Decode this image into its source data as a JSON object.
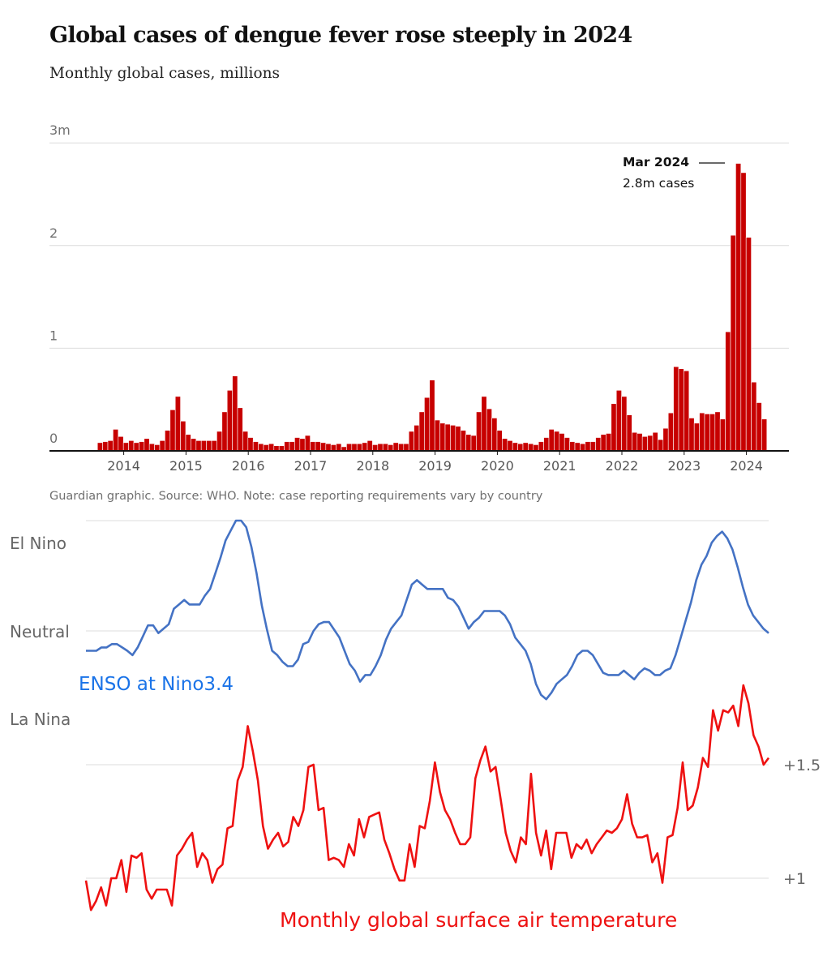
{
  "chart_data": [
    {
      "type": "bar",
      "title": "Global cases of dengue fever rose steeply in 2024",
      "subtitle": "Monthly global cases, millions",
      "xlabel": "",
      "ylabel": "",
      "ylim": [
        0,
        3
      ],
      "y_ticks": [
        {
          "value": 0,
          "label": "0"
        },
        {
          "value": 1,
          "label": "1"
        },
        {
          "value": 2,
          "label": "2"
        },
        {
          "value": 3,
          "label": "3m"
        }
      ],
      "x_labels": [
        "2014",
        "2015",
        "2016",
        "2017",
        "2018",
        "2019",
        "2020",
        "2021",
        "2022",
        "2023",
        "2024"
      ],
      "bar_color": "#c70000",
      "annotation": {
        "title": "Mar 2024",
        "text": "2.8m cases",
        "month_index": 123,
        "value": 2.8
      },
      "source": "Guardian graphic. Source: WHO. Note: case reporting requirements vary by country",
      "values": [
        0.08,
        0.09,
        0.1,
        0.21,
        0.14,
        0.08,
        0.1,
        0.08,
        0.09,
        0.12,
        0.07,
        0.06,
        0.1,
        0.2,
        0.4,
        0.53,
        0.29,
        0.16,
        0.12,
        0.1,
        0.1,
        0.1,
        0.1,
        0.19,
        0.38,
        0.59,
        0.73,
        0.42,
        0.19,
        0.13,
        0.09,
        0.07,
        0.06,
        0.07,
        0.05,
        0.05,
        0.09,
        0.09,
        0.13,
        0.12,
        0.15,
        0.09,
        0.09,
        0.08,
        0.07,
        0.06,
        0.07,
        0.04,
        0.07,
        0.07,
        0.07,
        0.08,
        0.1,
        0.06,
        0.07,
        0.07,
        0.06,
        0.08,
        0.07,
        0.07,
        0.19,
        0.25,
        0.38,
        0.52,
        0.69,
        0.3,
        0.27,
        0.26,
        0.25,
        0.24,
        0.2,
        0.16,
        0.15,
        0.38,
        0.53,
        0.41,
        0.32,
        0.2,
        0.12,
        0.1,
        0.08,
        0.07,
        0.08,
        0.07,
        0.06,
        0.09,
        0.13,
        0.21,
        0.19,
        0.17,
        0.13,
        0.09,
        0.08,
        0.07,
        0.09,
        0.09,
        0.13,
        0.16,
        0.17,
        0.46,
        0.59,
        0.53,
        0.35,
        0.18,
        0.17,
        0.14,
        0.15,
        0.18,
        0.11,
        0.22,
        0.37,
        0.82,
        0.8,
        0.78,
        0.32,
        0.27,
        0.37,
        0.36,
        0.36,
        0.38,
        0.31,
        1.16,
        2.1,
        2.8,
        2.71,
        2.08,
        0.67,
        0.47,
        0.31
      ]
    },
    {
      "type": "line",
      "series_name": "ENSO at Nino3.4",
      "color": "#4472c4",
      "y_labels": [
        "El Nino",
        "Neutral",
        "La Nina"
      ],
      "ylim": [
        -1,
        1
      ],
      "values": [
        -0.18,
        -0.18,
        -0.18,
        -0.15,
        -0.15,
        -0.12,
        -0.12,
        -0.15,
        -0.18,
        -0.22,
        -0.15,
        -0.05,
        0.05,
        0.05,
        -0.02,
        0.02,
        0.06,
        0.2,
        0.24,
        0.28,
        0.24,
        0.24,
        0.24,
        0.32,
        0.38,
        0.52,
        0.66,
        0.82,
        0.91,
        1.0,
        1.0,
        0.94,
        0.76,
        0.52,
        0.23,
        0.01,
        -0.18,
        -0.22,
        -0.28,
        -0.32,
        -0.32,
        -0.26,
        -0.12,
        -0.1,
        0.0,
        0.06,
        0.08,
        0.08,
        0.01,
        -0.06,
        -0.18,
        -0.3,
        -0.36,
        -0.46,
        -0.4,
        -0.4,
        -0.32,
        -0.22,
        -0.08,
        0.02,
        0.08,
        0.14,
        0.28,
        0.42,
        0.46,
        0.42,
        0.38,
        0.38,
        0.38,
        0.38,
        0.3,
        0.28,
        0.22,
        0.12,
        0.02,
        0.08,
        0.12,
        0.18,
        0.18,
        0.18,
        0.18,
        0.14,
        0.06,
        -0.06,
        -0.12,
        -0.18,
        -0.3,
        -0.48,
        -0.58,
        -0.62,
        -0.56,
        -0.48,
        -0.44,
        -0.4,
        -0.32,
        -0.22,
        -0.18,
        -0.18,
        -0.22,
        -0.3,
        -0.38,
        -0.4,
        -0.4,
        -0.4,
        -0.36,
        -0.4,
        -0.44,
        -0.38,
        -0.34,
        -0.36,
        -0.4,
        -0.4,
        -0.36,
        -0.34,
        -0.22,
        -0.06,
        0.1,
        0.26,
        0.46,
        0.6,
        0.68,
        0.8,
        0.86,
        0.9,
        0.84,
        0.74,
        0.58,
        0.4,
        0.24,
        0.14,
        0.08,
        0.02,
        -0.02
      ]
    },
    {
      "type": "line",
      "series_name": "Monthly global surface air temperature",
      "color": "#ee1111",
      "y_ticks": [
        {
          "value": 1.0,
          "label": "+1"
        },
        {
          "value": 1.5,
          "label": "+1.5"
        }
      ],
      "values": [
        0.99,
        0.86,
        0.9,
        0.96,
        0.88,
        1.0,
        1.0,
        1.08,
        0.94,
        1.1,
        1.09,
        1.11,
        0.95,
        0.91,
        0.95,
        0.95,
        0.95,
        0.88,
        1.1,
        1.13,
        1.17,
        1.2,
        1.05,
        1.11,
        1.08,
        0.98,
        1.04,
        1.06,
        1.22,
        1.23,
        1.43,
        1.49,
        1.67,
        1.56,
        1.43,
        1.23,
        1.13,
        1.17,
        1.2,
        1.14,
        1.16,
        1.27,
        1.23,
        1.3,
        1.49,
        1.5,
        1.3,
        1.31,
        1.08,
        1.09,
        1.08,
        1.05,
        1.15,
        1.1,
        1.26,
        1.18,
        1.27,
        1.28,
        1.29,
        1.17,
        1.11,
        1.04,
        0.99,
        0.99,
        1.15,
        1.05,
        1.23,
        1.22,
        1.34,
        1.51,
        1.38,
        1.3,
        1.26,
        1.2,
        1.15,
        1.15,
        1.18,
        1.44,
        1.52,
        1.58,
        1.47,
        1.49,
        1.35,
        1.2,
        1.12,
        1.07,
        1.18,
        1.15,
        1.46,
        1.2,
        1.1,
        1.21,
        1.04,
        1.2,
        1.2,
        1.2,
        1.09,
        1.15,
        1.13,
        1.17,
        1.11,
        1.15,
        1.18,
        1.21,
        1.2,
        1.22,
        1.26,
        1.37,
        1.24,
        1.18,
        1.18,
        1.19,
        1.07,
        1.11,
        0.98,
        1.18,
        1.19,
        1.31,
        1.51,
        1.3,
        1.32,
        1.4,
        1.53,
        1.49,
        1.74,
        1.65,
        1.74,
        1.73,
        1.76,
        1.67,
        1.85,
        1.77,
        1.63,
        1.58,
        1.5,
        1.53
      ]
    }
  ]
}
